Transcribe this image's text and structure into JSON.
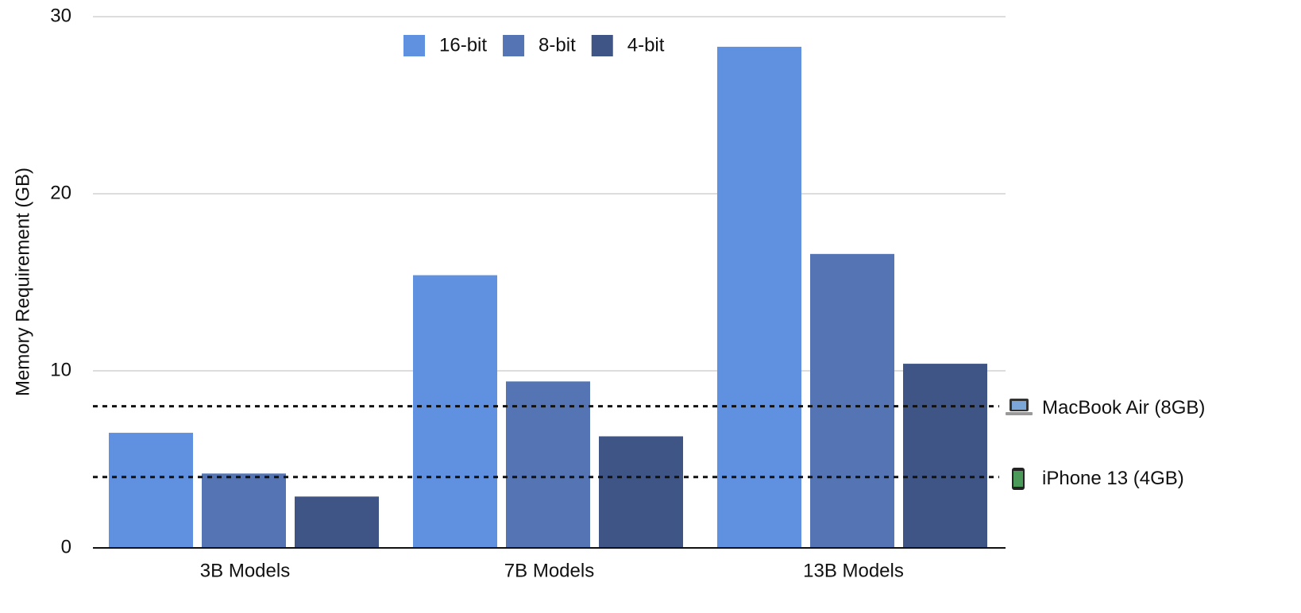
{
  "chart_data": {
    "type": "bar",
    "y_label": "Memory Requirement (GB)",
    "categories": [
      "3B Models",
      "7B Models",
      "13B Models"
    ],
    "series": [
      {
        "name": "16-bit",
        "color": "#6090e0",
        "values": [
          6.5,
          15.4,
          28.3
        ]
      },
      {
        "name": "8-bit",
        "color": "#5474b4",
        "values": [
          4.2,
          9.4,
          16.6
        ]
      },
      {
        "name": "4-bit",
        "color": "#3e5585",
        "values": [
          2.9,
          6.3,
          10.4
        ]
      }
    ],
    "ylim": [
      0,
      30
    ],
    "yticks": [
      0,
      10,
      20,
      30
    ],
    "grid": true,
    "legend": "top",
    "reference_lines": [
      {
        "label": "MacBook Air (8GB)",
        "value": 8
      },
      {
        "label": "iPhone 13 (4GB)",
        "value": 4
      }
    ]
  }
}
